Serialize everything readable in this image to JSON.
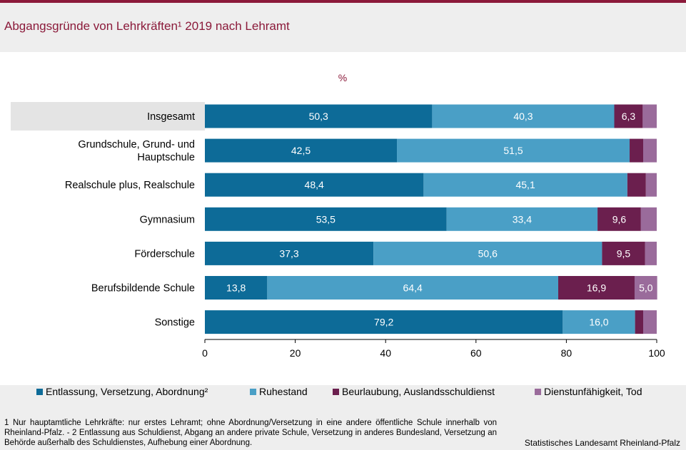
{
  "header": {
    "title": "Abgangsgründe von Lehrkräften¹ 2019 nach Lehramt"
  },
  "chart_data": {
    "type": "bar",
    "orientation": "horizontal",
    "stacked": true,
    "unit_label": "%",
    "categories": [
      "Insgesamt",
      "Grundschule, Grund- und Hauptschule",
      "Realschule plus, Realschule",
      "Gymnasium",
      "Förderschule",
      "Berufsbildende Schule",
      "Sonstige"
    ],
    "category_lines": [
      [
        "Insgesamt"
      ],
      [
        "Grundschule, Grund- und",
        "Hauptschule"
      ],
      [
        "Realschule plus, Realschule"
      ],
      [
        "Gymnasium"
      ],
      [
        "Förderschule"
      ],
      [
        "Berufsbildende Schule"
      ],
      [
        "Sonstige"
      ]
    ],
    "highlight_category": "Insgesamt",
    "series": [
      {
        "name": "Entlassung, Versetzung, Abordnung²",
        "color": "#0d6b98",
        "values": [
          50.3,
          42.5,
          48.4,
          53.5,
          37.3,
          13.8,
          79.2
        ],
        "labels": [
          "50,3",
          "42,5",
          "48,4",
          "53,5",
          "37,3",
          "13,8",
          "79,2"
        ]
      },
      {
        "name": "Ruhestand",
        "color": "#4a9fc6",
        "values": [
          40.3,
          51.5,
          45.1,
          33.4,
          50.6,
          64.4,
          16.0
        ],
        "labels": [
          "40,3",
          "51,5",
          "45,1",
          "33,4",
          "50,6",
          "64,4",
          "16,0"
        ]
      },
      {
        "name": "Beurlaubung, Auslandsschuldienst",
        "color": "#6b1f4e",
        "values": [
          6.3,
          3.0,
          4.1,
          9.6,
          9.5,
          16.9,
          1.8
        ],
        "labels": [
          "6,3",
          "",
          "",
          "9,6",
          "9,5",
          "16,9",
          ""
        ]
      },
      {
        "name": "Dienstunfähigkeit, Tod",
        "color": "#9a6b9b",
        "values": [
          3.1,
          3.0,
          2.4,
          3.5,
          2.6,
          5.0,
          3.0
        ],
        "labels": [
          "",
          "",
          "",
          "",
          "",
          "5,0",
          ""
        ]
      }
    ],
    "xlim": [
      0,
      100
    ],
    "xticks": [
      0,
      20,
      40,
      60,
      80,
      100
    ],
    "grid": false,
    "legend_position": "bottom"
  },
  "footer": {
    "footnote": "1 Nur hauptamtliche Lehrkräfte: nur erstes Lehramt; ohne Abordnung/Versetzung in eine andere öffentliche Schule innerhalb von Rheinland-Pfalz. - 2 Entlassung aus Schuldienst, Abgang an andere private Schule, Versetzung in anderes Bundesland, Versetzung an Behörde außerhalb des Schuldienstes, Aufhebung einer Abordnung.",
    "source": "Statistisches Landesamt Rheinland-Pfalz"
  }
}
